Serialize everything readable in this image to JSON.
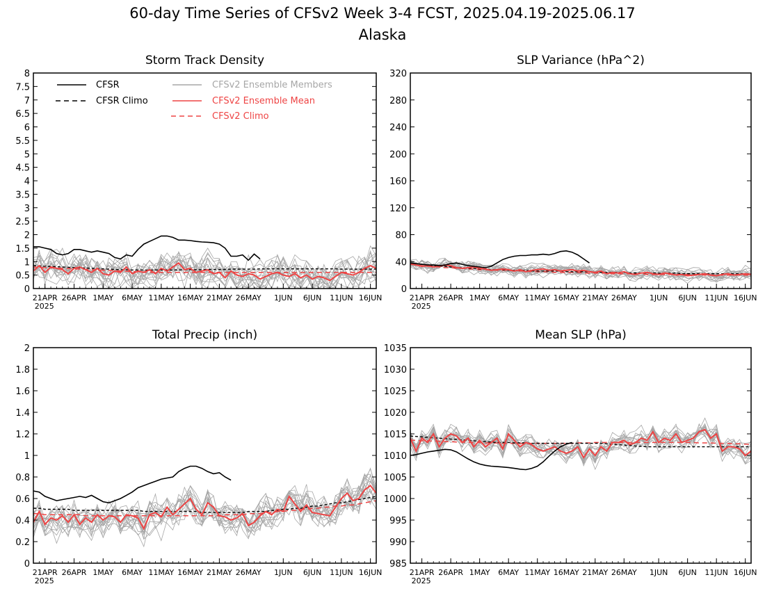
{
  "figure": {
    "title": "60-day Time Series of CFSv2 Week 3-4 FCST, 2025.04.19-2025.06.17",
    "subtitle": "Alaska"
  },
  "legend": {
    "cfsr": "CFSR",
    "cfsr_climo": "CFSR Climo",
    "members": "CFSv2 Ensemble Members",
    "ens_mean": "CFSv2 Ensemble Mean",
    "cfsv2_climo": "CFSv2 Climo"
  },
  "colors": {
    "cfsr": "#000000",
    "members": "#a6a6a6",
    "ens_mean": "#ee4444",
    "cfsv2_climo": "#ee4444"
  },
  "x_axis": {
    "tick_labels": [
      "21APR",
      "26APR",
      "1MAY",
      "6MAY",
      "11MAY",
      "16MAY",
      "21MAY",
      "26MAY",
      "1JUN",
      "6JUN",
      "11JUN",
      "16JUN"
    ],
    "tick_day_index": [
      2,
      7,
      12,
      17,
      22,
      27,
      32,
      37,
      43,
      48,
      53,
      58
    ],
    "year_label": "2025"
  },
  "chart_data": [
    {
      "type": "line",
      "title": "Storm Track Density",
      "ylim": [
        0,
        8
      ],
      "yticks": [
        "0",
        "0.5",
        "1",
        "1.5",
        "2",
        "2.5",
        "3",
        "3.5",
        "4",
        "4.5",
        "5",
        "5.5",
        "6",
        "6.5",
        "7",
        "7.5",
        "8"
      ],
      "days": 60,
      "legend_placement": "top-left",
      "cfsr": [
        1.55,
        1.55,
        1.5,
        1.45,
        1.3,
        1.25,
        1.3,
        1.45,
        1.45,
        1.4,
        1.35,
        1.4,
        1.35,
        1.3,
        1.15,
        1.1,
        1.25,
        1.2,
        1.45,
        1.65,
        1.75,
        1.85,
        1.95,
        1.95,
        1.9,
        1.8,
        1.8,
        1.78,
        1.75,
        1.73,
        1.72,
        1.7,
        1.65,
        1.5,
        1.2,
        1.2,
        1.25,
        1.05,
        1.28,
        1.1
      ],
      "cfsr_climo": [
        0.85,
        0.84,
        0.83,
        0.82,
        0.81,
        0.8,
        0.79,
        0.78,
        0.77,
        0.76,
        0.75,
        0.74,
        0.73,
        0.72,
        0.71,
        0.7,
        0.7,
        0.69,
        0.69,
        0.69,
        0.69,
        0.69,
        0.69,
        0.69,
        0.69,
        0.69,
        0.7,
        0.7,
        0.7,
        0.7,
        0.71,
        0.71,
        0.71,
        0.71,
        0.72,
        0.72,
        0.72,
        0.72,
        0.72,
        0.73,
        0.73,
        0.73,
        0.73,
        0.73,
        0.73,
        0.73,
        0.73,
        0.73,
        0.73,
        0.73,
        0.73,
        0.73,
        0.73,
        0.72,
        0.72,
        0.72,
        0.72,
        0.72,
        0.72,
        0.72
      ],
      "ens_mean": [
        0.65,
        0.85,
        0.6,
        0.8,
        0.75,
        0.7,
        0.55,
        0.75,
        0.8,
        0.7,
        0.6,
        0.75,
        0.55,
        0.5,
        0.65,
        0.6,
        0.8,
        0.55,
        0.65,
        0.6,
        0.7,
        0.55,
        0.75,
        0.65,
        0.8,
        0.95,
        0.7,
        0.75,
        0.6,
        0.65,
        0.7,
        0.55,
        0.6,
        0.4,
        0.65,
        0.5,
        0.45,
        0.55,
        0.5,
        0.35,
        0.45,
        0.55,
        0.6,
        0.5,
        0.45,
        0.55,
        0.4,
        0.5,
        0.35,
        0.45,
        0.4,
        0.3,
        0.45,
        0.6,
        0.55,
        0.5,
        0.6,
        0.75,
        0.85,
        0.75
      ],
      "cfsv2_climo": [
        0.8,
        0.79,
        0.78,
        0.77,
        0.76,
        0.75,
        0.74,
        0.73,
        0.72,
        0.71,
        0.7,
        0.69,
        0.68,
        0.67,
        0.66,
        0.65,
        0.64,
        0.63,
        0.62,
        0.61,
        0.6,
        0.6,
        0.6,
        0.6,
        0.6,
        0.6,
        0.6,
        0.6,
        0.6,
        0.6,
        0.6,
        0.6,
        0.6,
        0.6,
        0.6,
        0.6,
        0.6,
        0.6,
        0.6,
        0.6,
        0.6,
        0.6,
        0.6,
        0.6,
        0.6,
        0.6,
        0.6,
        0.6,
        0.6,
        0.6,
        0.6,
        0.6,
        0.6,
        0.6,
        0.6,
        0.6,
        0.6,
        0.6,
        0.6,
        0.6
      ],
      "member_spread": 0.8,
      "members_count": 16
    },
    {
      "type": "line",
      "title": "SLP Variance (hPa^2)",
      "ylim": [
        0,
        320
      ],
      "yticks": [
        "0",
        "40",
        "80",
        "120",
        "160",
        "200",
        "240",
        "280",
        "320"
      ],
      "days": 60,
      "cfsr": [
        38,
        37,
        36,
        35,
        35,
        34,
        35,
        37,
        38,
        36,
        34,
        33,
        32,
        31,
        33,
        38,
        43,
        46,
        48,
        49,
        49,
        50,
        50,
        51,
        50,
        52,
        55,
        56,
        54,
        50,
        44,
        38
      ],
      "cfsr_climo": [
        38,
        37,
        36,
        35,
        34,
        33,
        33,
        32,
        31,
        31,
        30,
        30,
        29,
        29,
        28,
        28,
        28,
        27,
        27,
        27,
        27,
        26,
        26,
        26,
        26,
        26,
        26,
        25,
        25,
        25,
        25,
        25,
        24,
        24,
        24,
        24,
        24,
        24,
        23,
        23,
        23,
        23,
        23,
        23,
        23,
        23,
        23,
        22,
        22,
        22,
        22,
        22,
        22,
        22,
        22,
        22,
        22,
        22,
        22,
        22
      ],
      "ens_mean": [
        37,
        35,
        33,
        34,
        32,
        33,
        35,
        34,
        31,
        30,
        31,
        32,
        30,
        29,
        27,
        28,
        29,
        28,
        26,
        28,
        25,
        27,
        28,
        29,
        27,
        28,
        26,
        27,
        28,
        26,
        27,
        25,
        24,
        26,
        22,
        24,
        23,
        25,
        22,
        21,
        23,
        24,
        22,
        21,
        23,
        22,
        20,
        21,
        19,
        20,
        21,
        22,
        20,
        19,
        21,
        22,
        20,
        21,
        22,
        21
      ],
      "cfsv2_climo": [
        36,
        35,
        34,
        33,
        33,
        32,
        31,
        31,
        30,
        30,
        29,
        29,
        28,
        28,
        28,
        27,
        27,
        27,
        26,
        26,
        26,
        25,
        25,
        25,
        25,
        24,
        24,
        24,
        24,
        24,
        23,
        23,
        23,
        23,
        23,
        22,
        22,
        22,
        22,
        22,
        22,
        21,
        21,
        21,
        21,
        21,
        21,
        21,
        21,
        21,
        21,
        20,
        20,
        20,
        20,
        20,
        20,
        20,
        20,
        20
      ],
      "member_spread": 12,
      "members_count": 16
    },
    {
      "type": "line",
      "title": "Total Precip (inch)",
      "ylim": [
        0,
        2
      ],
      "yticks": [
        "0",
        "0.2",
        "0.4",
        "0.6",
        "0.8",
        "1",
        "1.2",
        "1.4",
        "1.6",
        "1.8",
        "2"
      ],
      "days": 60,
      "cfsr": [
        0.67,
        0.66,
        0.62,
        0.6,
        0.58,
        0.59,
        0.6,
        0.61,
        0.62,
        0.61,
        0.63,
        0.6,
        0.57,
        0.56,
        0.58,
        0.6,
        0.63,
        0.66,
        0.7,
        0.72,
        0.74,
        0.76,
        0.78,
        0.79,
        0.8,
        0.85,
        0.88,
        0.9,
        0.9,
        0.88,
        0.85,
        0.83,
        0.84,
        0.8,
        0.77
      ],
      "cfsr_climo": [
        0.51,
        0.51,
        0.5,
        0.5,
        0.5,
        0.5,
        0.5,
        0.49,
        0.49,
        0.49,
        0.49,
        0.49,
        0.49,
        0.49,
        0.49,
        0.49,
        0.49,
        0.49,
        0.49,
        0.48,
        0.48,
        0.48,
        0.48,
        0.48,
        0.48,
        0.48,
        0.48,
        0.48,
        0.48,
        0.47,
        0.47,
        0.47,
        0.47,
        0.47,
        0.47,
        0.47,
        0.47,
        0.48,
        0.48,
        0.48,
        0.48,
        0.49,
        0.49,
        0.5,
        0.5,
        0.51,
        0.51,
        0.52,
        0.53,
        0.53,
        0.54,
        0.55,
        0.56,
        0.56,
        0.57,
        0.58,
        0.59,
        0.6,
        0.61,
        0.62
      ],
      "ens_mean": [
        0.38,
        0.48,
        0.36,
        0.42,
        0.4,
        0.44,
        0.38,
        0.45,
        0.36,
        0.42,
        0.38,
        0.45,
        0.4,
        0.44,
        0.43,
        0.38,
        0.45,
        0.44,
        0.42,
        0.32,
        0.45,
        0.47,
        0.43,
        0.52,
        0.45,
        0.5,
        0.55,
        0.6,
        0.5,
        0.45,
        0.56,
        0.52,
        0.44,
        0.43,
        0.4,
        0.42,
        0.46,
        0.35,
        0.38,
        0.44,
        0.48,
        0.45,
        0.5,
        0.48,
        0.62,
        0.55,
        0.48,
        0.54,
        0.47,
        0.46,
        0.45,
        0.44,
        0.52,
        0.6,
        0.65,
        0.58,
        0.6,
        0.68,
        0.72,
        0.65
      ],
      "cfsv2_climo": [
        0.46,
        0.46,
        0.45,
        0.45,
        0.45,
        0.45,
        0.45,
        0.45,
        0.45,
        0.44,
        0.44,
        0.44,
        0.44,
        0.44,
        0.44,
        0.44,
        0.44,
        0.44,
        0.44,
        0.44,
        0.44,
        0.44,
        0.44,
        0.44,
        0.44,
        0.44,
        0.44,
        0.44,
        0.44,
        0.44,
        0.44,
        0.44,
        0.44,
        0.45,
        0.45,
        0.45,
        0.45,
        0.46,
        0.46,
        0.46,
        0.47,
        0.47,
        0.48,
        0.48,
        0.49,
        0.49,
        0.5,
        0.5,
        0.51,
        0.51,
        0.52,
        0.52,
        0.53,
        0.53,
        0.54,
        0.54,
        0.55,
        0.56,
        0.57,
        0.58
      ],
      "member_spread": 0.2,
      "members_count": 16
    },
    {
      "type": "line",
      "title": "Mean SLP (hPa)",
      "ylim": [
        985,
        1035
      ],
      "yticks": [
        "985",
        "990",
        "995",
        "1000",
        "1005",
        "1010",
        "1015",
        "1020",
        "1025",
        "1030",
        "1035"
      ],
      "days": 60,
      "cfsr": [
        1010,
        1010.2,
        1010.5,
        1010.8,
        1011,
        1011.2,
        1011.4,
        1011.3,
        1010.8,
        1010,
        1009.2,
        1008.5,
        1008,
        1007.7,
        1007.5,
        1007.4,
        1007.3,
        1007.2,
        1007,
        1006.8,
        1006.7,
        1007,
        1007.5,
        1008.5,
        1009.8,
        1011,
        1012,
        1012.6,
        1013
      ],
      "cfsr_climo": [
        1014.5,
        1014.4,
        1014.3,
        1014.2,
        1014.1,
        1014,
        1013.9,
        1013.8,
        1013.7,
        1013.6,
        1013.5,
        1013.4,
        1013.3,
        1013.2,
        1013.1,
        1013,
        1013,
        1013,
        1012.9,
        1012.9,
        1012.9,
        1012.8,
        1012.8,
        1012.8,
        1012.8,
        1012.8,
        1012.8,
        1012.8,
        1012.8,
        1012.8,
        1012.8,
        1012.8,
        1012.8,
        1012.8,
        1012.7,
        1012.6,
        1012.5,
        1012.4,
        1012.3,
        1012.2,
        1012.1,
        1012,
        1012,
        1012,
        1012,
        1012,
        1012,
        1012,
        1012,
        1012,
        1012,
        1012,
        1012,
        1012,
        1012,
        1012,
        1012,
        1012,
        1012,
        1012
      ],
      "ens_mean": [
        1014,
        1011,
        1014,
        1013,
        1015,
        1012,
        1014,
        1015,
        1014.5,
        1013,
        1014,
        1012,
        1013.5,
        1012,
        1013,
        1014,
        1011.5,
        1015,
        1013.5,
        1012,
        1013,
        1012.5,
        1011.5,
        1011,
        1011.5,
        1012,
        1011,
        1010.5,
        1011,
        1012,
        1009.5,
        1011.5,
        1010,
        1012,
        1011,
        1013,
        1013,
        1013.5,
        1012.5,
        1013,
        1014,
        1013.5,
        1015.5,
        1013,
        1014,
        1013.5,
        1015,
        1013,
        1013.5,
        1014,
        1015.5,
        1016,
        1014,
        1015,
        1011,
        1012,
        1012,
        1011.5,
        1010,
        1011
      ],
      "cfsv2_climo": [
        1013.5,
        1013.5,
        1013.4,
        1013.4,
        1013.3,
        1013.3,
        1013.2,
        1013.2,
        1013.1,
        1013.1,
        1013,
        1013,
        1013,
        1012.9,
        1012.9,
        1012.9,
        1012.8,
        1012.8,
        1012.8,
        1012.8,
        1012.8,
        1012.8,
        1012.8,
        1012.8,
        1012.8,
        1012.8,
        1012.8,
        1012.8,
        1012.8,
        1012.9,
        1012.9,
        1012.9,
        1013,
        1013,
        1013,
        1013,
        1013,
        1013,
        1013,
        1013,
        1013,
        1013,
        1013,
        1013,
        1013,
        1013,
        1013,
        1013,
        1013,
        1013,
        1012.9,
        1012.9,
        1012.9,
        1012.8,
        1012.8,
        1012.8,
        1012.7,
        1012.7,
        1012.6,
        1012.6
      ],
      "member_spread": 3,
      "members_count": 16
    }
  ]
}
